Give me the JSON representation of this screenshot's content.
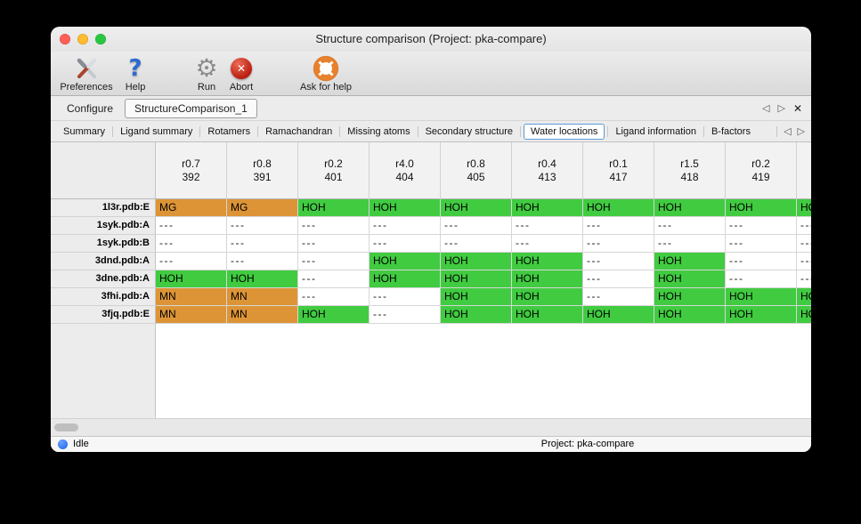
{
  "window": {
    "title": "Structure comparison (Project: pka-compare)"
  },
  "toolbar": {
    "items": [
      {
        "id": "preferences",
        "label": "Preferences",
        "icon": "preferences-icon"
      },
      {
        "id": "help",
        "label": "Help",
        "icon": "help-icon"
      },
      {
        "id": "run",
        "label": "Run",
        "icon": "run-gear-icon"
      },
      {
        "id": "abort",
        "label": "Abort",
        "icon": "abort-icon"
      },
      {
        "id": "ask-for-help",
        "label": "Ask for help",
        "icon": "lifebuoy-icon"
      }
    ]
  },
  "main_tabs": {
    "items": [
      {
        "id": "configure",
        "label": "Configure",
        "active": false
      },
      {
        "id": "structurecomparison-1",
        "label": "StructureComparison_1",
        "active": true
      }
    ],
    "controls": [
      {
        "id": "scroll-left",
        "icon": "triangle-left-icon"
      },
      {
        "id": "scroll-right",
        "icon": "triangle-right-icon"
      },
      {
        "id": "close",
        "icon": "close-icon"
      }
    ]
  },
  "sub_tabs": {
    "items": [
      {
        "id": "summary",
        "label": "Summary",
        "active": false
      },
      {
        "id": "ligand-summary",
        "label": "Ligand summary",
        "active": false
      },
      {
        "id": "rotamers",
        "label": "Rotamers",
        "active": false
      },
      {
        "id": "ramachandran",
        "label": "Ramachandran",
        "active": false
      },
      {
        "id": "missing-atoms",
        "label": "Missing atoms",
        "active": false
      },
      {
        "id": "secondary-structure",
        "label": "Secondary structure",
        "active": false
      },
      {
        "id": "water-locations",
        "label": "Water locations",
        "active": true
      },
      {
        "id": "ligand-information",
        "label": "Ligand information",
        "active": false
      },
      {
        "id": "b-factors",
        "label": "B-factors",
        "active": false
      }
    ],
    "controls": [
      {
        "id": "scroll-left",
        "icon": "triangle-left-icon"
      },
      {
        "id": "scroll-right",
        "icon": "triangle-right-icon"
      }
    ]
  },
  "table": {
    "columns": [
      {
        "rvalue": "r0.7",
        "resnum": "392"
      },
      {
        "rvalue": "r0.8",
        "resnum": "391"
      },
      {
        "rvalue": "r0.2",
        "resnum": "401"
      },
      {
        "rvalue": "r4.0",
        "resnum": "404"
      },
      {
        "rvalue": "r0.8",
        "resnum": "405"
      },
      {
        "rvalue": "r0.4",
        "resnum": "413"
      },
      {
        "rvalue": "r0.1",
        "resnum": "417"
      },
      {
        "rvalue": "r1.5",
        "resnum": "418"
      },
      {
        "rvalue": "r0.2",
        "resnum": "419"
      },
      {
        "rvalue": "",
        "resnum": ""
      }
    ],
    "rows": [
      {
        "label": "1l3r.pdb:E",
        "cells": [
          {
            "text": "MG",
            "type": "metal"
          },
          {
            "text": "MG",
            "type": "metal"
          },
          {
            "text": "HOH",
            "type": "water"
          },
          {
            "text": "HOH",
            "type": "water"
          },
          {
            "text": "HOH",
            "type": "water"
          },
          {
            "text": "HOH",
            "type": "water"
          },
          {
            "text": "HOH",
            "type": "water"
          },
          {
            "text": "HOH",
            "type": "water"
          },
          {
            "text": "HOH",
            "type": "water"
          },
          {
            "text": "HOH",
            "type": "water"
          }
        ]
      },
      {
        "label": "1syk.pdb:A",
        "cells": [
          {
            "text": "---",
            "type": "empty"
          },
          {
            "text": "---",
            "type": "empty"
          },
          {
            "text": "---",
            "type": "empty"
          },
          {
            "text": "---",
            "type": "empty"
          },
          {
            "text": "---",
            "type": "empty"
          },
          {
            "text": "---",
            "type": "empty"
          },
          {
            "text": "---",
            "type": "empty"
          },
          {
            "text": "---",
            "type": "empty"
          },
          {
            "text": "---",
            "type": "empty"
          },
          {
            "text": "---",
            "type": "empty"
          }
        ]
      },
      {
        "label": "1syk.pdb:B",
        "cells": [
          {
            "text": "---",
            "type": "empty"
          },
          {
            "text": "---",
            "type": "empty"
          },
          {
            "text": "---",
            "type": "empty"
          },
          {
            "text": "---",
            "type": "empty"
          },
          {
            "text": "---",
            "type": "empty"
          },
          {
            "text": "---",
            "type": "empty"
          },
          {
            "text": "---",
            "type": "empty"
          },
          {
            "text": "---",
            "type": "empty"
          },
          {
            "text": "---",
            "type": "empty"
          },
          {
            "text": "---",
            "type": "empty"
          }
        ]
      },
      {
        "label": "3dnd.pdb:A",
        "cells": [
          {
            "text": "---",
            "type": "empty"
          },
          {
            "text": "---",
            "type": "empty"
          },
          {
            "text": "---",
            "type": "empty"
          },
          {
            "text": "HOH",
            "type": "water"
          },
          {
            "text": "HOH",
            "type": "water"
          },
          {
            "text": "HOH",
            "type": "water"
          },
          {
            "text": "---",
            "type": "empty"
          },
          {
            "text": "HOH",
            "type": "water"
          },
          {
            "text": "---",
            "type": "empty"
          },
          {
            "text": "---",
            "type": "empty"
          }
        ]
      },
      {
        "label": "3dne.pdb:A",
        "cells": [
          {
            "text": "HOH",
            "type": "water"
          },
          {
            "text": "HOH",
            "type": "water"
          },
          {
            "text": "---",
            "type": "empty"
          },
          {
            "text": "HOH",
            "type": "water"
          },
          {
            "text": "HOH",
            "type": "water"
          },
          {
            "text": "HOH",
            "type": "water"
          },
          {
            "text": "---",
            "type": "empty"
          },
          {
            "text": "HOH",
            "type": "water"
          },
          {
            "text": "---",
            "type": "empty"
          },
          {
            "text": "---",
            "type": "empty"
          }
        ]
      },
      {
        "label": "3fhi.pdb:A",
        "cells": [
          {
            "text": "MN",
            "type": "metal"
          },
          {
            "text": "MN",
            "type": "metal"
          },
          {
            "text": "---",
            "type": "empty"
          },
          {
            "text": "---",
            "type": "empty"
          },
          {
            "text": "HOH",
            "type": "water"
          },
          {
            "text": "HOH",
            "type": "water"
          },
          {
            "text": "---",
            "type": "empty"
          },
          {
            "text": "HOH",
            "type": "water"
          },
          {
            "text": "HOH",
            "type": "water"
          },
          {
            "text": "HOH",
            "type": "water"
          }
        ]
      },
      {
        "label": "3fjq.pdb:E",
        "cells": [
          {
            "text": "MN",
            "type": "metal"
          },
          {
            "text": "MN",
            "type": "metal"
          },
          {
            "text": "HOH",
            "type": "water"
          },
          {
            "text": "---",
            "type": "empty"
          },
          {
            "text": "HOH",
            "type": "water"
          },
          {
            "text": "HOH",
            "type": "water"
          },
          {
            "text": "HOH",
            "type": "water"
          },
          {
            "text": "HOH",
            "type": "water"
          },
          {
            "text": "HOH",
            "type": "water"
          },
          {
            "text": "HOH",
            "type": "water"
          }
        ]
      }
    ]
  },
  "status_bar": {
    "status": "Idle",
    "project": "Project: pka-compare"
  },
  "colors": {
    "water_cell": "#41cb41",
    "metal_cell": "#dd9437",
    "active_tab_ring": "#5b9bd5",
    "status_dot": "#1b63e8"
  }
}
